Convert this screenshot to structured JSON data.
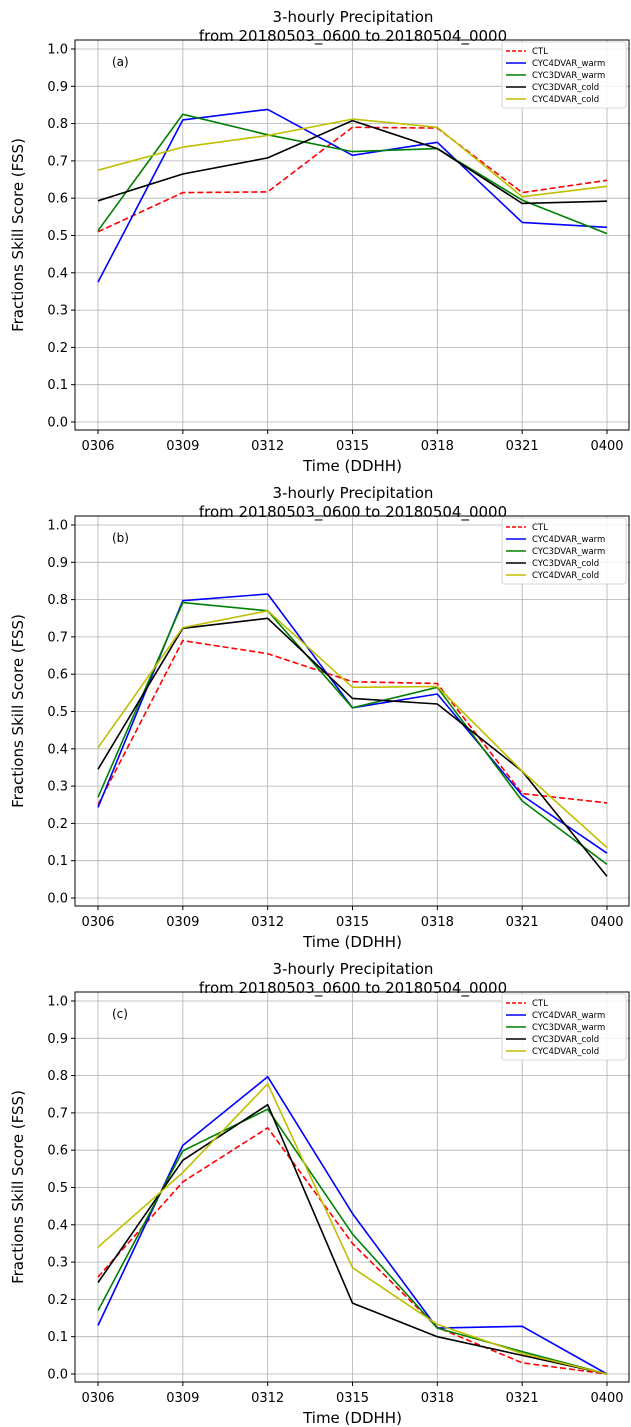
{
  "chart_data": [
    {
      "type": "line",
      "title": "3-hourly Precipitation",
      "subtitle": "from 20180503_0600 to 20180504_0000",
      "panel_label": "(a)",
      "xlabel": "Time (DDHH)",
      "ylabel": "Fractions Skill Score (FSS)",
      "categories": [
        "0306",
        "0309",
        "0312",
        "0315",
        "0318",
        "0321",
        "0400"
      ],
      "ylim": [
        0.0,
        1.0
      ],
      "yticks": [
        "0.0",
        "0.1",
        "0.2",
        "0.3",
        "0.4",
        "0.5",
        "0.6",
        "0.7",
        "0.8",
        "0.9",
        "1.0"
      ],
      "grid": true,
      "legend_position": "top-right",
      "series": [
        {
          "name": "CTL",
          "color": "#ff0000",
          "dash": true,
          "values": [
            0.51,
            0.615,
            0.617,
            0.79,
            0.788,
            0.615,
            0.648
          ]
        },
        {
          "name": "CYC4DVAR_warm",
          "color": "#0000ff",
          "dash": false,
          "values": [
            0.375,
            0.81,
            0.838,
            0.715,
            0.75,
            0.535,
            0.522
          ]
        },
        {
          "name": "CYC3DVAR_warm",
          "color": "#008000",
          "dash": false,
          "values": [
            0.513,
            0.825,
            0.77,
            0.725,
            0.733,
            0.595,
            0.505
          ]
        },
        {
          "name": "CYC3DVAR_cold",
          "color": "#000000",
          "dash": false,
          "values": [
            0.593,
            0.665,
            0.708,
            0.808,
            0.733,
            0.586,
            0.592
          ]
        },
        {
          "name": "CYC4DVAR_cold",
          "color": "#bfbf00",
          "dash": false,
          "values": [
            0.675,
            0.737,
            0.768,
            0.812,
            0.79,
            0.604,
            0.632
          ]
        }
      ]
    },
    {
      "type": "line",
      "title": "3-hourly Precipitation",
      "subtitle": "from 20180503_0600 to 20180504_0000",
      "panel_label": "(b)",
      "xlabel": "Time (DDHH)",
      "ylabel": "Fractions Skill Score (FSS)",
      "categories": [
        "0306",
        "0309",
        "0312",
        "0315",
        "0318",
        "0321",
        "0400"
      ],
      "ylim": [
        0.0,
        1.0
      ],
      "yticks": [
        "0.0",
        "0.1",
        "0.2",
        "0.3",
        "0.4",
        "0.5",
        "0.6",
        "0.7",
        "0.8",
        "0.9",
        "1.0"
      ],
      "grid": true,
      "legend_position": "top-right",
      "series": [
        {
          "name": "CTL",
          "color": "#ff0000",
          "dash": true,
          "values": [
            0.25,
            0.69,
            0.655,
            0.58,
            0.575,
            0.28,
            0.255
          ]
        },
        {
          "name": "CYC4DVAR_warm",
          "color": "#0000ff",
          "dash": false,
          "values": [
            0.243,
            0.797,
            0.815,
            0.51,
            0.547,
            0.275,
            0.12
          ]
        },
        {
          "name": "CYC3DVAR_warm",
          "color": "#008000",
          "dash": false,
          "values": [
            0.27,
            0.792,
            0.77,
            0.51,
            0.565,
            0.26,
            0.09
          ]
        },
        {
          "name": "CYC3DVAR_cold",
          "color": "#000000",
          "dash": false,
          "values": [
            0.345,
            0.723,
            0.75,
            0.535,
            0.52,
            0.34,
            0.058
          ]
        },
        {
          "name": "CYC4DVAR_cold",
          "color": "#bfbf00",
          "dash": false,
          "values": [
            0.403,
            0.725,
            0.77,
            0.565,
            0.567,
            0.34,
            0.135
          ]
        }
      ]
    },
    {
      "type": "line",
      "title": "3-hourly Precipitation",
      "subtitle": "from 20180503_0600 to 20180504_0000",
      "panel_label": "(c)",
      "xlabel": "Time (DDHH)",
      "ylabel": "Fractions Skill Score (FSS)",
      "categories": [
        "0306",
        "0309",
        "0312",
        "0315",
        "0318",
        "0321",
        "0400"
      ],
      "ylim": [
        0.0,
        1.0
      ],
      "yticks": [
        "0.0",
        "0.1",
        "0.2",
        "0.3",
        "0.4",
        "0.5",
        "0.6",
        "0.7",
        "0.8",
        "0.9",
        "1.0"
      ],
      "grid": true,
      "legend_position": "top-right",
      "series": [
        {
          "name": "CTL",
          "color": "#ff0000",
          "dash": true,
          "values": [
            0.26,
            0.515,
            0.66,
            0.35,
            0.125,
            0.03,
            0.0
          ]
        },
        {
          "name": "CYC4DVAR_warm",
          "color": "#0000ff",
          "dash": false,
          "values": [
            0.13,
            0.613,
            0.797,
            0.43,
            0.123,
            0.128,
            0.0
          ]
        },
        {
          "name": "CYC3DVAR_warm",
          "color": "#008000",
          "dash": false,
          "values": [
            0.17,
            0.598,
            0.71,
            0.375,
            0.123,
            0.06,
            0.0
          ]
        },
        {
          "name": "CYC3DVAR_cold",
          "color": "#000000",
          "dash": false,
          "values": [
            0.245,
            0.573,
            0.722,
            0.19,
            0.1,
            0.05,
            0.0
          ]
        },
        {
          "name": "CYC4DVAR_cold",
          "color": "#bfbf00",
          "dash": false,
          "values": [
            0.34,
            0.54,
            0.778,
            0.285,
            0.133,
            0.055,
            0.0
          ]
        }
      ]
    }
  ]
}
